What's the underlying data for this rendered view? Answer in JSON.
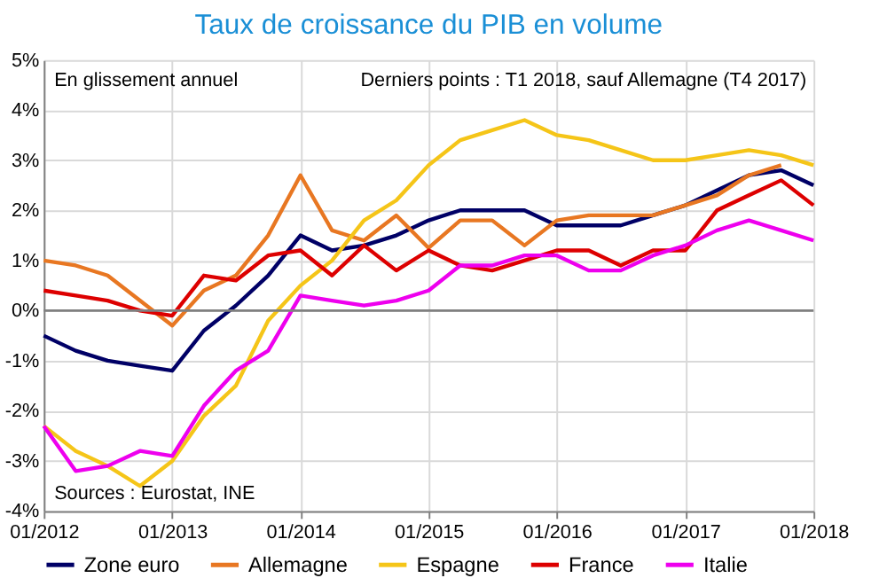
{
  "chart_data": {
    "type": "line",
    "title": "Taux de croissance du PIB en volume",
    "annotations": [
      "En glissement annuel",
      "Derniers points : T1 2018, sauf Allemagne (T4 2017)",
      "Sources : Eurostat, INE"
    ],
    "x": [
      "2012-01",
      "2012-04",
      "2012-07",
      "2012-10",
      "2013-01",
      "2013-04",
      "2013-07",
      "2013-10",
      "2014-01",
      "2014-04",
      "2014-07",
      "2014-10",
      "2015-01",
      "2015-04",
      "2015-07",
      "2015-10",
      "2016-01",
      "2016-04",
      "2016-07",
      "2016-10",
      "2017-01",
      "2017-04",
      "2017-07",
      "2017-10",
      "2018-01"
    ],
    "series": [
      {
        "name": "Zone euro",
        "color": "#000066",
        "values": [
          -0.5,
          -0.8,
          -1.0,
          -1.1,
          -1.2,
          -0.4,
          0.1,
          0.7,
          1.5,
          1.2,
          1.3,
          1.5,
          1.8,
          2.0,
          2.0,
          2.0,
          1.7,
          1.7,
          1.7,
          1.9,
          2.1,
          2.4,
          2.7,
          2.8,
          2.5
        ]
      },
      {
        "name": "Allemagne",
        "color": "#e87722",
        "values": [
          1.0,
          0.9,
          0.7,
          0.2,
          -0.3,
          0.4,
          0.7,
          1.5,
          2.7,
          1.6,
          1.4,
          1.9,
          1.25,
          1.8,
          1.8,
          1.3,
          1.8,
          1.9,
          1.9,
          1.9,
          2.1,
          2.3,
          2.7,
          2.9,
          null
        ]
      },
      {
        "name": "Espagne",
        "color": "#f5c518",
        "values": [
          -2.3,
          -2.8,
          -3.1,
          -3.5,
          -3.0,
          -2.1,
          -1.5,
          -0.2,
          0.5,
          1.0,
          1.8,
          2.2,
          2.9,
          3.4,
          3.6,
          3.8,
          3.5,
          3.4,
          3.2,
          3.0,
          3.0,
          3.1,
          3.2,
          3.1,
          2.9
        ]
      },
      {
        "name": "France",
        "color": "#dd0000",
        "values": [
          0.4,
          0.3,
          0.2,
          0.0,
          -0.1,
          0.7,
          0.6,
          1.1,
          1.2,
          0.7,
          1.3,
          0.8,
          1.2,
          0.9,
          0.8,
          1.0,
          1.2,
          1.2,
          0.9,
          1.2,
          1.2,
          2.0,
          2.3,
          2.6,
          2.1
        ]
      },
      {
        "name": "Italie",
        "color": "#ee00ee",
        "values": [
          -2.3,
          -3.2,
          -3.1,
          -2.8,
          -2.9,
          -1.9,
          -1.2,
          -0.8,
          0.3,
          0.2,
          0.1,
          0.2,
          0.4,
          0.9,
          0.9,
          1.1,
          1.1,
          0.8,
          0.8,
          1.1,
          1.3,
          1.6,
          1.8,
          1.6,
          1.4
        ]
      }
    ],
    "xlim": [
      "2012-01",
      "2018-01"
    ],
    "xticks": [
      {
        "value": "2012-01",
        "label": "01/2012"
      },
      {
        "value": "2013-01",
        "label": "01/2013"
      },
      {
        "value": "2014-01",
        "label": "01/2014"
      },
      {
        "value": "2015-01",
        "label": "01/2015"
      },
      {
        "value": "2016-01",
        "label": "01/2016"
      },
      {
        "value": "2017-01",
        "label": "01/2017"
      },
      {
        "value": "2018-01",
        "label": "01/2018"
      }
    ],
    "ylim": [
      -4,
      5
    ],
    "yticks": [
      {
        "value": -4,
        "label": "-4%"
      },
      {
        "value": -3,
        "label": "-3%"
      },
      {
        "value": -2,
        "label": "-2%"
      },
      {
        "value": -1,
        "label": "-1%"
      },
      {
        "value": 0,
        "label": "0%"
      },
      {
        "value": 1,
        "label": "1%"
      },
      {
        "value": 2,
        "label": "2%"
      },
      {
        "value": 3,
        "label": "3%"
      },
      {
        "value": 4,
        "label": "4%"
      },
      {
        "value": 5,
        "label": "5%"
      }
    ],
    "ref_lines": [
      {
        "axis": "y",
        "value": 0,
        "color": "#808080"
      }
    ],
    "grid": true,
    "legend": "bottom",
    "marker": "none",
    "line_style": "solid"
  }
}
